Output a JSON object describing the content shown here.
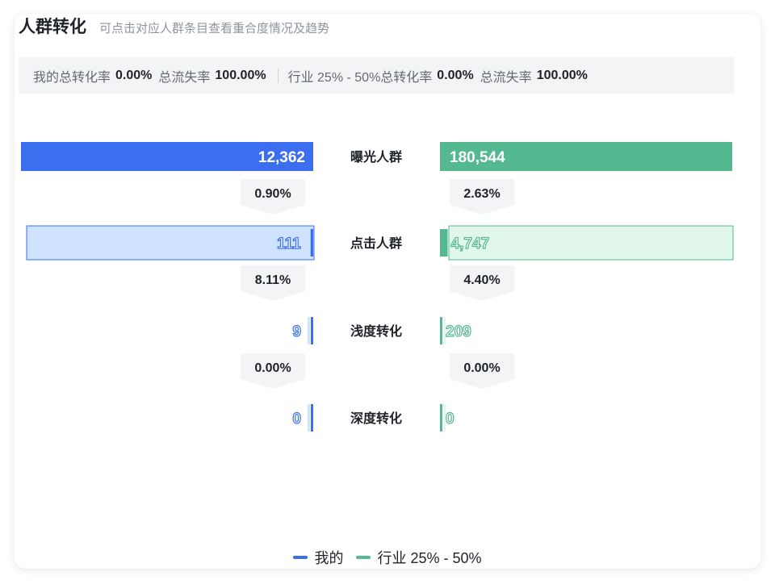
{
  "header": {
    "title": "人群转化",
    "subtitle": "可点击对应人群条目查看重合度情况及趋势"
  },
  "summary": {
    "mine": {
      "rate_label": "我的总转化率",
      "rate_value": "0.00%",
      "loss_label": "总流失率",
      "loss_value": "100.00%"
    },
    "industry": {
      "rate_label": "行业 25% - 50%总转化率",
      "rate_value": "0.00%",
      "loss_label": "总流失率",
      "loss_value": "100.00%"
    }
  },
  "colors": {
    "mine": "#3c6ff0",
    "mine_light": "#cfe2ff",
    "industry": "#54b891",
    "industry_light": "#e1f7ea",
    "rate_bg": "#f3f4f6"
  },
  "chart_data": {
    "type": "bar",
    "categories": [
      "曝光人群",
      "点击人群",
      "浅度转化",
      "深度转化"
    ],
    "series": [
      {
        "name": "我的",
        "values": [
          12362,
          111,
          9,
          0
        ],
        "value_labels": [
          "12,362",
          "111",
          "9",
          "0"
        ],
        "conversion_rates": [
          "0.90%",
          "8.11%",
          "0.00%"
        ]
      },
      {
        "name": "行业 25% - 50%",
        "values": [
          180544,
          4747,
          209,
          0
        ],
        "value_labels": [
          "180,544",
          "4,747",
          "209",
          "0"
        ],
        "conversion_rates": [
          "2.63%",
          "4.40%",
          "0.00%"
        ]
      }
    ],
    "legend_position": "bottom-center",
    "highlighted_category": "点击人群"
  },
  "legend": {
    "items": [
      {
        "label": "我的",
        "color": "#3c6ff0"
      },
      {
        "label": "行业 25% - 50%",
        "color": "#54b891"
      }
    ]
  }
}
